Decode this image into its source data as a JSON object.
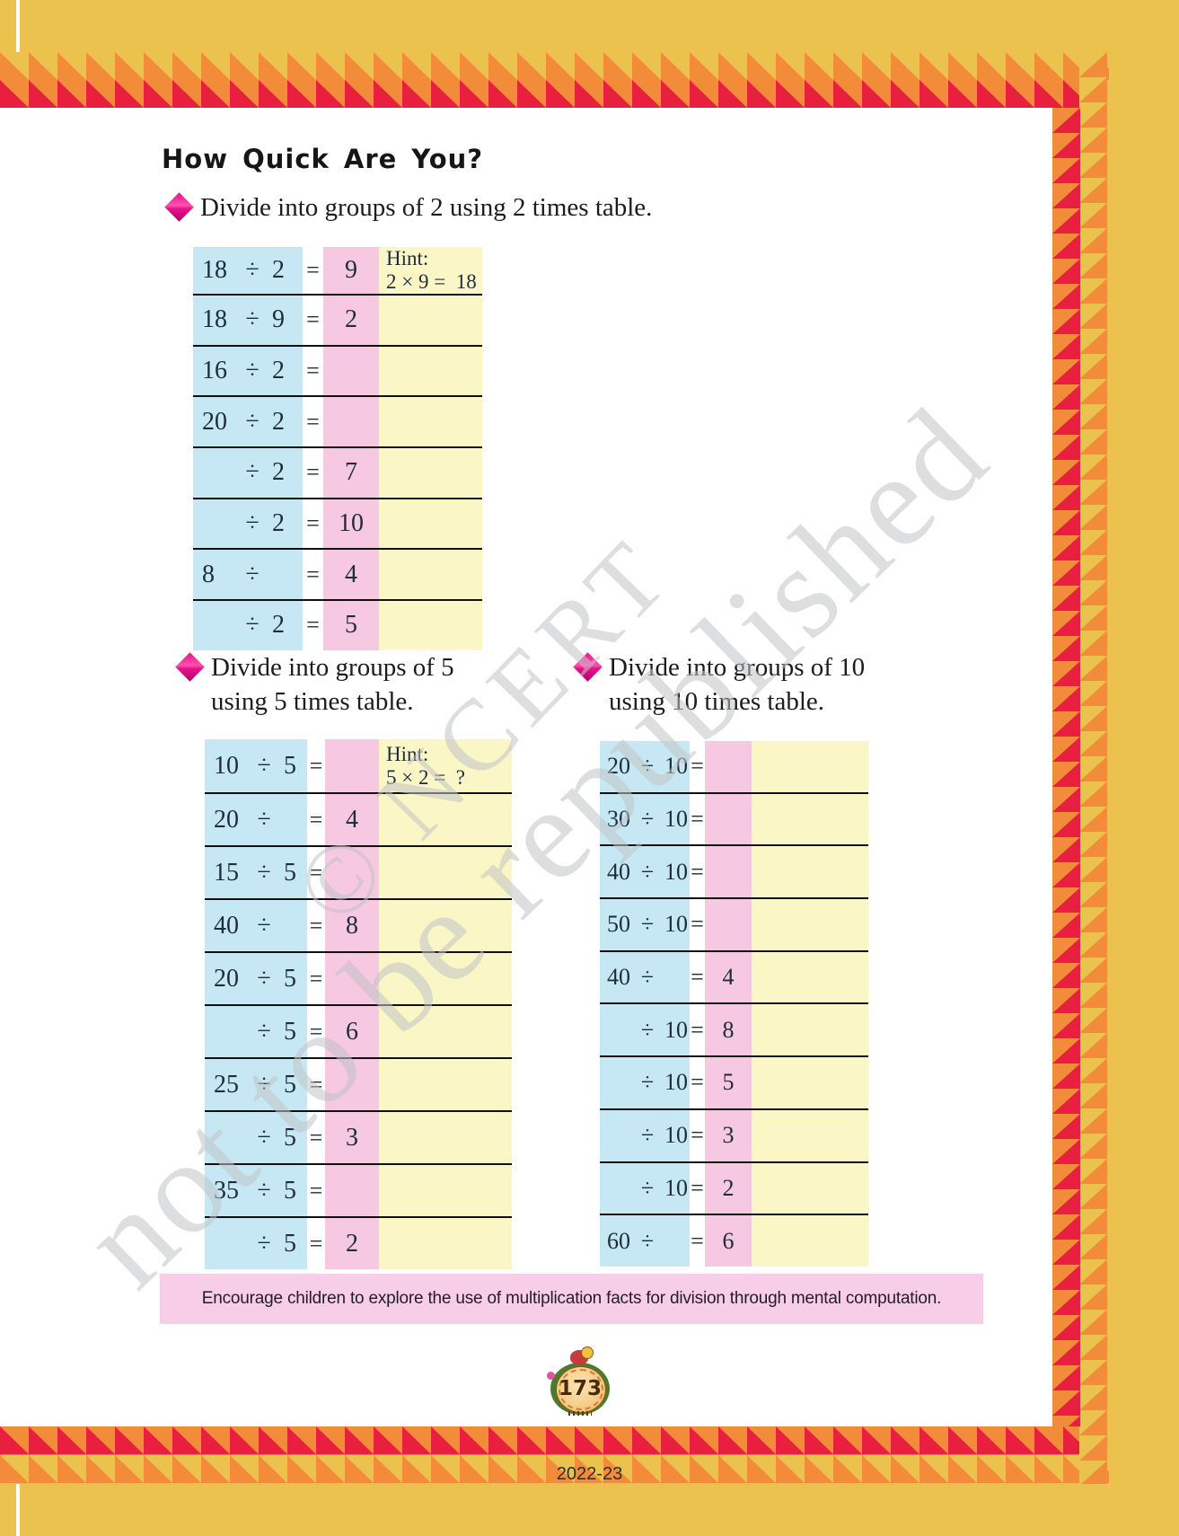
{
  "page": {
    "title": "How Quick Are You?",
    "footer_note": "Encourage children to explore the use of multiplication facts for division through mental computation.",
    "page_number": "173",
    "edition": "2022-23",
    "watermark_line1": "© NCERT",
    "watermark_line2": "not to be republished"
  },
  "colors": {
    "gold": "#ecc24f",
    "orange": "#f28c3a",
    "red": "#e81f3e",
    "cellblue": "#c5e8f4",
    "cellpink": "#f7c8e1",
    "cellyellow": "#fbf6c6",
    "bannerpink": "#f8cde7",
    "magenta": "#e6148c",
    "ink": "#1e2c3c"
  },
  "symbols": {
    "divide": "÷",
    "equals": "=",
    "multiply": "×"
  },
  "sections": [
    {
      "id": "t1",
      "bullet_lines": [
        "Divide into groups of 2 using 2 times table."
      ]
    },
    {
      "id": "t2",
      "bullet_lines": [
        "Divide into groups of 5",
        "using 5 times table."
      ]
    },
    {
      "id": "t3",
      "bullet_lines": [
        "Divide into groups of 10",
        "using 10 times table."
      ]
    }
  ],
  "tables": [
    {
      "id": "t1",
      "rows": [
        {
          "dividend": "18",
          "divisor": "2",
          "answer": "9",
          "hint": [
            "Hint:",
            "2 × 9 =  18"
          ]
        },
        {
          "dividend": "18",
          "divisor": "9",
          "answer": "2"
        },
        {
          "dividend": "16",
          "divisor": "2",
          "answer": ""
        },
        {
          "dividend": "20",
          "divisor": "2",
          "answer": ""
        },
        {
          "dividend": "",
          "divisor": "2",
          "answer": "7"
        },
        {
          "dividend": "",
          "divisor": "2",
          "answer": "10"
        },
        {
          "dividend": "8",
          "divisor": "",
          "answer": "4"
        },
        {
          "dividend": "",
          "divisor": "2",
          "answer": "5"
        }
      ]
    },
    {
      "id": "t2",
      "rows": [
        {
          "dividend": "10",
          "divisor": "5",
          "answer": "",
          "hint": [
            "Hint:",
            "5 × 2 =  ?"
          ]
        },
        {
          "dividend": "20",
          "divisor": "",
          "answer": "4"
        },
        {
          "dividend": "15",
          "divisor": "5",
          "answer": ""
        },
        {
          "dividend": "40",
          "divisor": "",
          "answer": "8"
        },
        {
          "dividend": "20",
          "divisor": "5",
          "answer": ""
        },
        {
          "dividend": "",
          "divisor": "5",
          "answer": "6"
        },
        {
          "dividend": "25",
          "divisor": "5",
          "answer": ""
        },
        {
          "dividend": "",
          "divisor": "5",
          "answer": "3"
        },
        {
          "dividend": "35",
          "divisor": "5",
          "answer": ""
        },
        {
          "dividend": "",
          "divisor": "5",
          "answer": "2"
        }
      ]
    },
    {
      "id": "t3",
      "rows": [
        {
          "dividend": "20",
          "divisor": "10",
          "answer": ""
        },
        {
          "dividend": "30",
          "divisor": "10",
          "answer": ""
        },
        {
          "dividend": "40",
          "divisor": "10",
          "answer": ""
        },
        {
          "dividend": "50",
          "divisor": "10",
          "answer": ""
        },
        {
          "dividend": "40",
          "divisor": "",
          "answer": "4"
        },
        {
          "dividend": "",
          "divisor": "10",
          "answer": "8"
        },
        {
          "dividend": "",
          "divisor": "10",
          "answer": "5"
        },
        {
          "dividend": "",
          "divisor": "10",
          "answer": "3"
        },
        {
          "dividend": "",
          "divisor": "10",
          "answer": "2"
        },
        {
          "dividend": "60",
          "divisor": "",
          "answer": "6"
        }
      ]
    }
  ]
}
